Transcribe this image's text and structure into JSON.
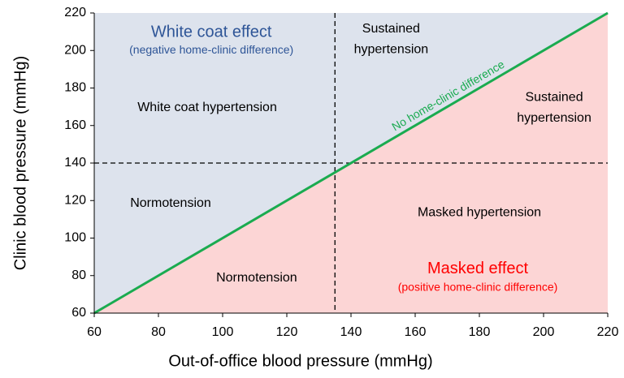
{
  "chart_data": {
    "type": "region",
    "xlabel": "Out-of-office blood pressure (mmHg)",
    "ylabel": "Clinic blood pressure (mmHg)",
    "xlim": [
      60,
      220
    ],
    "ylim": [
      60,
      220
    ],
    "xticks": [
      60,
      80,
      100,
      120,
      140,
      160,
      180,
      200,
      220
    ],
    "yticks": [
      60,
      80,
      100,
      120,
      140,
      160,
      180,
      200,
      220
    ],
    "region_colors": {
      "above": "#dde3ed",
      "below": "#fcd5d5"
    },
    "thresholds": {
      "x": 135,
      "y": 140
    },
    "reference_line": {
      "label": "No home-clinic difference",
      "slope": 1,
      "intercept": 0,
      "color": "#1aab50"
    },
    "annotations": [
      {
        "text": [
          "White coat effect"
        ],
        "x": 96.5,
        "y": 209.6,
        "color": "#2e5597",
        "size": 20
      },
      {
        "text": [
          "(negative home-clinic difference)"
        ],
        "x": 96.5,
        "y": 200,
        "color": "#2e5597",
        "size": 14
      },
      {
        "text": [
          "Sustained",
          "hypertension"
        ],
        "x": 152.5,
        "y": 206,
        "color": "#000000",
        "size": 16
      },
      {
        "text": [
          "White coat hypertension"
        ],
        "x": 95.2,
        "y": 169.4,
        "color": "#000000",
        "size": 16
      },
      {
        "text": [
          "Sustained",
          "hypertension"
        ],
        "x": 203.3,
        "y": 169.4,
        "color": "#000000",
        "size": 16
      },
      {
        "text": [
          "Normotension"
        ],
        "x": 83.8,
        "y": 118.4,
        "color": "#000000",
        "size": 16
      },
      {
        "text": [
          "Masked hypertension"
        ],
        "x": 180,
        "y": 113.6,
        "color": "#000000",
        "size": 16
      },
      {
        "text": [
          "Normotension"
        ],
        "x": 110.6,
        "y": 78.6,
        "color": "#000000",
        "size": 16
      },
      {
        "text": [
          "Masked effect"
        ],
        "x": 179.5,
        "y": 83.4,
        "color": "#ff0000",
        "size": 20
      },
      {
        "text": [
          "(positive home-clinic difference)"
        ],
        "x": 179.5,
        "y": 73.4,
        "color": "#ff0000",
        "size": 14
      }
    ]
  }
}
